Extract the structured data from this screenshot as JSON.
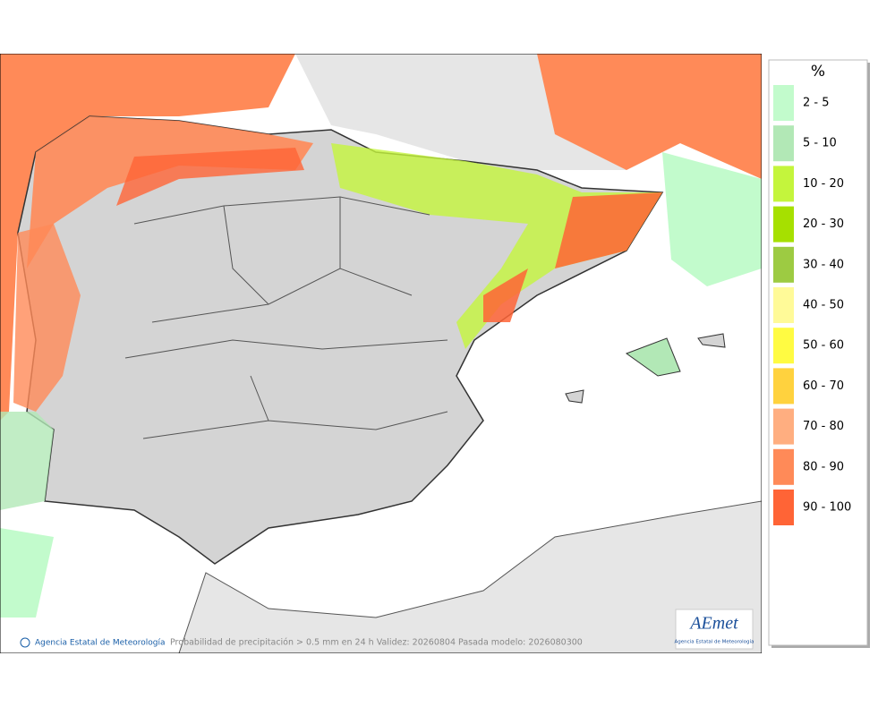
{
  "legend": {
    "title": "%",
    "items": [
      {
        "label": "2 - 5",
        "color": "#c2fbcc"
      },
      {
        "label": "5 - 10",
        "color": "#b2e8b6"
      },
      {
        "label": "10 - 20",
        "color": "#c4f53c"
      },
      {
        "label": "20 - 30",
        "color": "#a6e000"
      },
      {
        "label": "30 - 40",
        "color": "#9dcb42"
      },
      {
        "label": "40 - 50",
        "color": "#fffa98"
      },
      {
        "label": "50 - 60",
        "color": "#fffb42"
      },
      {
        "label": "60 - 70",
        "color": "#ffd23e"
      },
      {
        "label": "70 - 80",
        "color": "#ffae80"
      },
      {
        "label": "80 - 90",
        "color": "#ff8a58"
      },
      {
        "label": "90 - 100",
        "color": "#ff6436"
      }
    ]
  },
  "credit": "Agencia Estatal de Meteorología",
  "caption": "Probabilidad de precipitación > 0.5 mm en 24 h Validez: 20260804 Pasada modelo: 2026080300",
  "logo": {
    "mark": "AEmet",
    "text": "Agencia Estatal de Meteorología"
  }
}
